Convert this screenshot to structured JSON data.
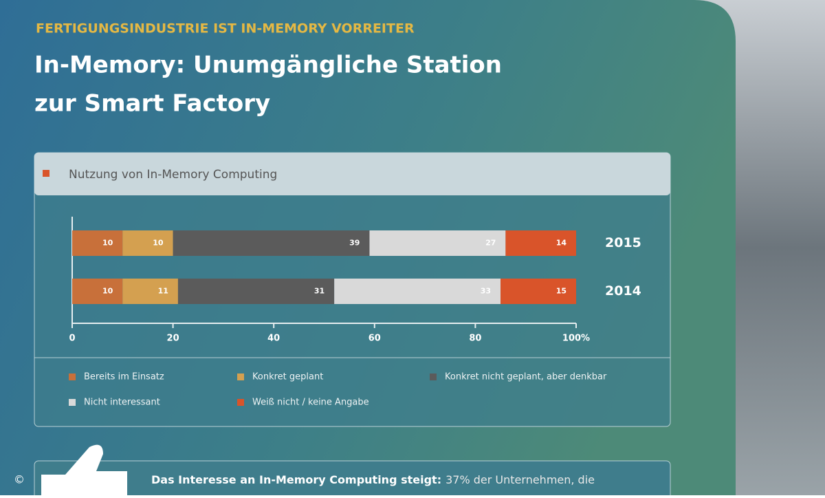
{
  "header": {
    "kicker": "FERTIGUNGSINDUSTRIE IST IN-MEMORY VORREITER",
    "title_line1": "In-Memory: Unumgängliche Station",
    "title_line2": "zur Smart Factory"
  },
  "chart_data": {
    "type": "stacked-bar-horizontal",
    "subtitle": "Nutzung von In-Memory Computing",
    "categories": [
      "2015",
      "2014"
    ],
    "series": [
      {
        "name": "Bereits im Einsatz",
        "color": "#c8703a",
        "values": [
          10,
          10
        ]
      },
      {
        "name": "Konkret geplant",
        "color": "#d4a050",
        "values": [
          10,
          11
        ]
      },
      {
        "name": "Konkret nicht geplant, aber denkbar",
        "color": "#5b5b5b",
        "values": [
          39,
          31
        ]
      },
      {
        "name": "Nicht interessant",
        "color": "#d9d9d9",
        "values": [
          27,
          33
        ]
      },
      {
        "name": "Weiß nicht / keine Angabe",
        "color": "#d9542a",
        "values": [
          14,
          15
        ]
      }
    ],
    "xlim": [
      0,
      100
    ],
    "xticks": [
      0,
      20,
      40,
      60,
      80,
      {
        "value": 100,
        "label": "100%"
      }
    ]
  },
  "note": {
    "lead": "Das Interesse an In-Memory Computing steigt:",
    "text": "37% der Unternehmen, die"
  },
  "copyright": "©"
}
